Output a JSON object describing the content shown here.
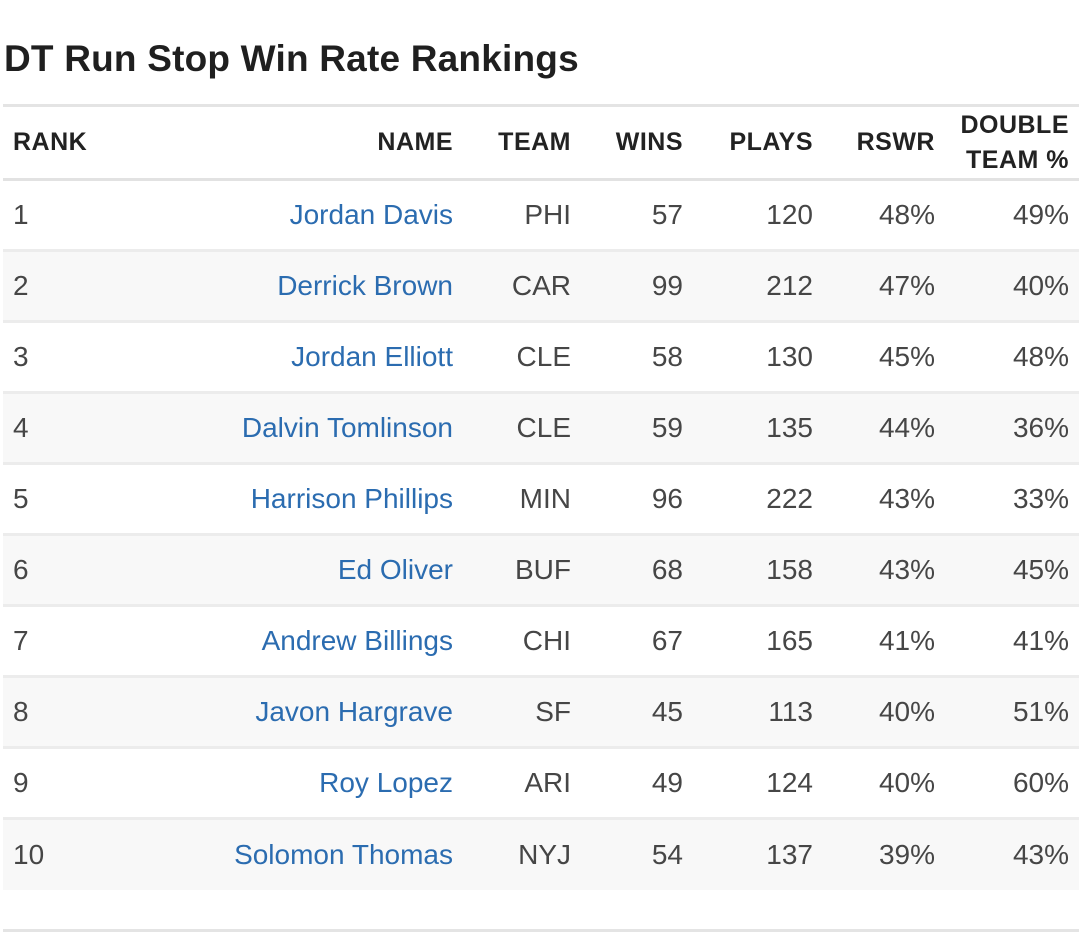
{
  "title": "DT Run Stop Win Rate Rankings",
  "colors": {
    "link": "#2b6cb0",
    "text": "#464646",
    "header": "#222222",
    "stripe": "#f8f8f8"
  },
  "columns": [
    "Rank",
    "Name",
    "Team",
    "Wins",
    "Plays",
    "RSWR",
    "Double Team %"
  ],
  "rows": [
    {
      "rank": "1",
      "name": "Jordan Davis",
      "team": "PHI",
      "wins": "57",
      "plays": "120",
      "rswr": "48%",
      "double_team": "49%"
    },
    {
      "rank": "2",
      "name": "Derrick Brown",
      "team": "CAR",
      "wins": "99",
      "plays": "212",
      "rswr": "47%",
      "double_team": "40%"
    },
    {
      "rank": "3",
      "name": "Jordan Elliott",
      "team": "CLE",
      "wins": "58",
      "plays": "130",
      "rswr": "45%",
      "double_team": "48%"
    },
    {
      "rank": "4",
      "name": "Dalvin Tomlinson",
      "team": "CLE",
      "wins": "59",
      "plays": "135",
      "rswr": "44%",
      "double_team": "36%"
    },
    {
      "rank": "5",
      "name": "Harrison Phillips",
      "team": "MIN",
      "wins": "96",
      "plays": "222",
      "rswr": "43%",
      "double_team": "33%"
    },
    {
      "rank": "6",
      "name": "Ed Oliver",
      "team": "BUF",
      "wins": "68",
      "plays": "158",
      "rswr": "43%",
      "double_team": "45%"
    },
    {
      "rank": "7",
      "name": "Andrew Billings",
      "team": "CHI",
      "wins": "67",
      "plays": "165",
      "rswr": "41%",
      "double_team": "41%"
    },
    {
      "rank": "8",
      "name": "Javon Hargrave",
      "team": "SF",
      "wins": "45",
      "plays": "113",
      "rswr": "40%",
      "double_team": "51%"
    },
    {
      "rank": "9",
      "name": "Roy Lopez",
      "team": "ARI",
      "wins": "49",
      "plays": "124",
      "rswr": "40%",
      "double_team": "60%"
    },
    {
      "rank": "10",
      "name": "Solomon Thomas",
      "team": "NYJ",
      "wins": "54",
      "plays": "137",
      "rswr": "39%",
      "double_team": "43%"
    }
  ]
}
